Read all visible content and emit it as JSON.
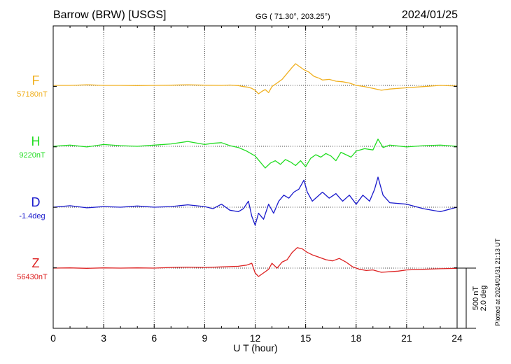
{
  "chart_data": {
    "type": "line",
    "title": "Barrow (BRW)  [USGS]",
    "subtitle": "GG ( 71.30°, 203.25°)",
    "date": "2024/01/25",
    "xlabel": "U T (hour)",
    "xlim": [
      0,
      24
    ],
    "xticks": [
      "0",
      "3",
      "6",
      "9",
      "12",
      "15",
      "18",
      "21",
      "24"
    ],
    "grid": true,
    "scale_bar": {
      "nt": "500 nT",
      "deg": "2.0 deg"
    },
    "plotted_note": "Plotted at 2024/01/31 21:13 UT",
    "series": [
      {
        "name": "F",
        "baseline_label": "57180nT",
        "color": "#f0b020",
        "baseline": 57180,
        "x": [
          0,
          1,
          2,
          3,
          4,
          5,
          6,
          7,
          8,
          9,
          10,
          10.5,
          11,
          11.3,
          11.6,
          11.8,
          12,
          12.2,
          12.4,
          12.6,
          12.8,
          13,
          13.3,
          13.6,
          13.9,
          14.2,
          14.4,
          14.6,
          14.9,
          15.2,
          15.5,
          15.8,
          16,
          16.4,
          16.8,
          17.2,
          17.6,
          18,
          18.5,
          19,
          19.5,
          20,
          21,
          22,
          23,
          24
        ],
        "values": [
          57180,
          57180,
          57185,
          57180,
          57180,
          57178,
          57180,
          57182,
          57185,
          57182,
          57180,
          57183,
          57178,
          57170,
          57165,
          57155,
          57140,
          57110,
          57130,
          57145,
          57120,
          57170,
          57200,
          57230,
          57280,
          57330,
          57360,
          57340,
          57310,
          57290,
          57255,
          57240,
          57225,
          57230,
          57215,
          57210,
          57200,
          57180,
          57170,
          57155,
          57140,
          57150,
          57160,
          57170,
          57180,
          57175
        ]
      },
      {
        "name": "H",
        "baseline_label": "9220nT",
        "color": "#22dd22",
        "baseline": 9220,
        "x": [
          0,
          1,
          2,
          3,
          4,
          5,
          6,
          7,
          8,
          9,
          9.5,
          10,
          10.5,
          11,
          11.5,
          12,
          12.3,
          12.6,
          12.9,
          13.2,
          13.5,
          13.8,
          14.1,
          14.4,
          14.7,
          15,
          15.3,
          15.6,
          15.9,
          16.2,
          16.5,
          16.8,
          17.1,
          17.4,
          17.7,
          18,
          18.5,
          19,
          19.3,
          19.6,
          20,
          21,
          22,
          23,
          24
        ],
        "values": [
          9220,
          9230,
          9215,
          9235,
          9225,
          9220,
          9230,
          9240,
          9260,
          9235,
          9245,
          9250,
          9225,
          9210,
          9180,
          9140,
          9090,
          9040,
          9080,
          9100,
          9070,
          9110,
          9090,
          9060,
          9100,
          9050,
          9120,
          9150,
          9130,
          9160,
          9140,
          9100,
          9170,
          9150,
          9130,
          9180,
          9200,
          9190,
          9280,
          9210,
          9230,
          9215,
          9225,
          9230,
          9220
        ]
      },
      {
        "name": "D",
        "baseline_label": "-1.4deg",
        "color": "#1a1acc",
        "baseline": -1.4,
        "x": [
          0,
          1,
          2,
          3,
          4,
          5,
          6,
          7,
          8,
          9,
          9.5,
          10,
          10.5,
          11,
          11.3,
          11.6,
          11.8,
          12,
          12.2,
          12.5,
          12.8,
          13.1,
          13.4,
          13.7,
          14,
          14.3,
          14.6,
          14.9,
          15.1,
          15.4,
          15.7,
          16,
          16.4,
          16.8,
          17.2,
          17.6,
          18,
          18.4,
          18.8,
          19.1,
          19.3,
          19.6,
          20,
          21,
          22,
          23,
          24
        ],
        "values": [
          -1.4,
          -1.35,
          -1.42,
          -1.38,
          -1.4,
          -1.36,
          -1.4,
          -1.38,
          -1.32,
          -1.38,
          -1.45,
          -1.3,
          -1.5,
          -1.55,
          -1.45,
          -1.2,
          -1.7,
          -2.0,
          -1.6,
          -1.8,
          -1.3,
          -1.6,
          -1.2,
          -1.0,
          -1.1,
          -0.9,
          -0.8,
          -0.5,
          -0.9,
          -1.2,
          -1.05,
          -0.9,
          -1.1,
          -0.95,
          -1.2,
          -1.0,
          -1.3,
          -1.0,
          -1.2,
          -0.8,
          -0.4,
          -1.0,
          -1.25,
          -1.3,
          -1.45,
          -1.55,
          -1.4
        ]
      },
      {
        "name": "Z",
        "baseline_label": "56430nT",
        "color": "#dd2222",
        "baseline": 56430,
        "x": [
          0,
          1,
          2,
          3,
          4,
          5,
          6,
          7,
          8,
          9,
          10,
          11,
          11.5,
          11.8,
          12,
          12.2,
          12.5,
          12.8,
          13,
          13.3,
          13.6,
          13.9,
          14.2,
          14.5,
          14.8,
          15.1,
          15.4,
          15.8,
          16.2,
          16.6,
          17,
          17.4,
          17.8,
          18.2,
          18.6,
          19,
          19.5,
          20,
          20.5,
          21,
          22,
          23,
          24
        ],
        "values": [
          56430,
          56432,
          56428,
          56432,
          56430,
          56432,
          56430,
          56435,
          56438,
          56435,
          56440,
          56445,
          56455,
          56470,
          56390,
          56360,
          56390,
          56420,
          56470,
          56430,
          56480,
          56500,
          56560,
          56600,
          56590,
          56560,
          56540,
          56520,
          56500,
          56490,
          56510,
          56480,
          56440,
          56420,
          56410,
          56415,
          56395,
          56400,
          56405,
          56415,
          56420,
          56425,
          56428
        ]
      }
    ]
  }
}
